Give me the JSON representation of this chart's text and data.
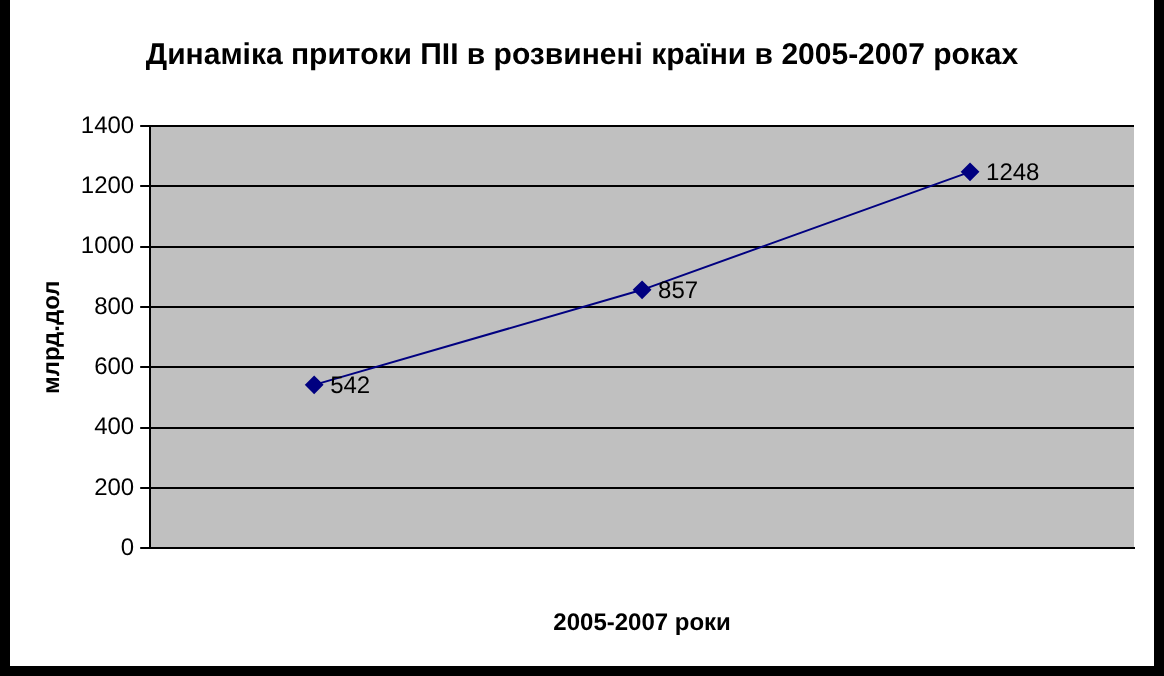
{
  "chart_data": {
    "type": "line",
    "title": "Динаміка притоки ПІІ в розвинені країни в 2005-2007 роках",
    "xlabel": "2005-2007 роки",
    "ylabel": "млрд.дол",
    "categories": [
      null,
      null,
      null
    ],
    "series": [
      {
        "color": "#000080",
        "values": [
          542,
          857,
          1248
        ]
      }
    ],
    "ylim": [
      0,
      1400
    ],
    "yticks": [
      0,
      200,
      400,
      600,
      800,
      1000,
      1200,
      1400
    ],
    "grid": "y",
    "legend": false,
    "marker": "diamond",
    "line_style": "solid",
    "data_labels": true
  }
}
